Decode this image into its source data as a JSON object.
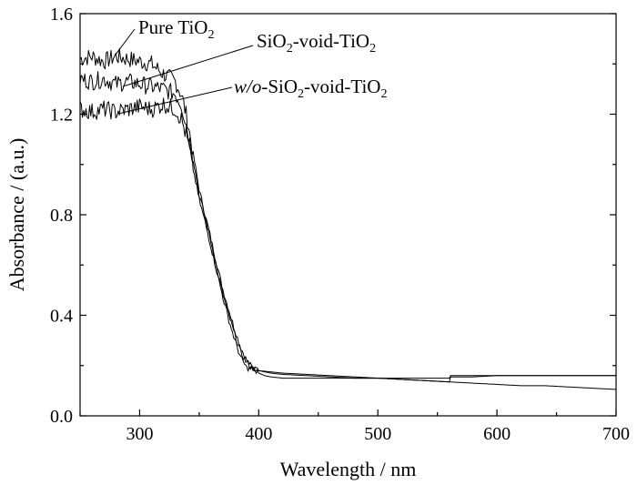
{
  "chart_data": {
    "type": "line",
    "title": "",
    "xlabel": "Wavelength / nm",
    "ylabel": "Absorbance / (a.u.)",
    "xlim": [
      250,
      700
    ],
    "ylim": [
      0.0,
      1.6
    ],
    "x_ticks": [
      300,
      400,
      500,
      600,
      700
    ],
    "x_tick_labels": [
      "300",
      "400",
      "500",
      "600",
      "700"
    ],
    "y_ticks": [
      0.0,
      0.4,
      0.8,
      1.2,
      1.6
    ],
    "y_tick_labels": [
      "0.0",
      "0.4",
      "0.8",
      "1.2",
      "1.6"
    ],
    "grid": false,
    "legend": "none",
    "annotations": [
      {
        "series": "Pure TiO2",
        "parts": [
          [
            "Pure TiO",
            "normal"
          ],
          [
            "2",
            "sub"
          ]
        ]
      },
      {
        "series": "SiO2-void-TiO2",
        "parts": [
          [
            "SiO",
            "normal"
          ],
          [
            "2",
            "sub"
          ],
          [
            "-void-TiO",
            "normal"
          ],
          [
            "2",
            "sub"
          ]
        ]
      },
      {
        "series": "w/o-SiO2-void-TiO2",
        "parts": [
          [
            "w/o",
            "italic"
          ],
          [
            "-SiO",
            "normal"
          ],
          [
            "2",
            "sub"
          ],
          [
            "-void-TiO",
            "normal"
          ],
          [
            "2",
            "sub"
          ]
        ]
      }
    ],
    "series": [
      {
        "name": "Pure TiO2",
        "x": [
          250,
          260,
          270,
          280,
          290,
          300,
          310,
          320,
          330,
          335,
          340,
          345,
          350,
          355,
          360,
          365,
          370,
          375,
          380,
          385,
          390,
          395,
          400,
          405,
          410,
          420,
          440,
          460,
          480,
          500,
          520,
          540,
          560,
          561,
          580,
          600,
          620,
          640,
          660,
          680,
          700
        ],
        "y": [
          1.42,
          1.43,
          1.41,
          1.43,
          1.42,
          1.41,
          1.4,
          1.36,
          1.33,
          1.28,
          1.18,
          1.04,
          0.9,
          0.8,
          0.7,
          0.6,
          0.5,
          0.42,
          0.34,
          0.27,
          0.22,
          0.19,
          0.17,
          0.16,
          0.155,
          0.15,
          0.15,
          0.15,
          0.15,
          0.15,
          0.15,
          0.15,
          0.15,
          0.16,
          0.16,
          0.16,
          0.16,
          0.16,
          0.16,
          0.16,
          0.16
        ]
      },
      {
        "name": "SiO2-void-TiO2",
        "x": [
          250,
          260,
          270,
          280,
          290,
          300,
          310,
          320,
          330,
          335,
          340,
          345,
          350,
          355,
          360,
          365,
          370,
          375,
          380,
          385,
          390,
          395,
          400,
          410,
          420,
          440,
          460,
          480,
          500,
          520,
          540,
          560,
          561,
          580,
          600,
          620,
          640,
          660,
          680,
          700
        ],
        "y": [
          1.34,
          1.33,
          1.34,
          1.32,
          1.33,
          1.32,
          1.31,
          1.3,
          1.28,
          1.24,
          1.14,
          1.02,
          0.88,
          0.79,
          0.69,
          0.58,
          0.48,
          0.4,
          0.32,
          0.25,
          0.21,
          0.19,
          0.18,
          0.17,
          0.165,
          0.16,
          0.155,
          0.15,
          0.15,
          0.145,
          0.14,
          0.135,
          0.155,
          0.155,
          0.16,
          0.16,
          0.16,
          0.16,
          0.16,
          0.16
        ]
      },
      {
        "name": "w/o-SiO2-void-TiO2",
        "x": [
          250,
          260,
          270,
          280,
          290,
          300,
          310,
          320,
          330,
          335,
          340,
          345,
          350,
          355,
          360,
          365,
          370,
          375,
          380,
          385,
          390,
          395,
          400,
          410,
          420,
          440,
          460,
          480,
          500,
          520,
          540,
          560,
          580,
          600,
          620,
          640,
          660,
          680,
          700
        ],
        "y": [
          1.22,
          1.21,
          1.22,
          1.21,
          1.22,
          1.23,
          1.22,
          1.24,
          1.22,
          1.18,
          1.1,
          0.98,
          0.86,
          0.77,
          0.67,
          0.57,
          0.47,
          0.38,
          0.3,
          0.23,
          0.19,
          0.185,
          0.18,
          0.175,
          0.17,
          0.165,
          0.16,
          0.155,
          0.15,
          0.145,
          0.14,
          0.135,
          0.13,
          0.125,
          0.12,
          0.12,
          0.115,
          0.11,
          0.105
        ]
      }
    ]
  }
}
